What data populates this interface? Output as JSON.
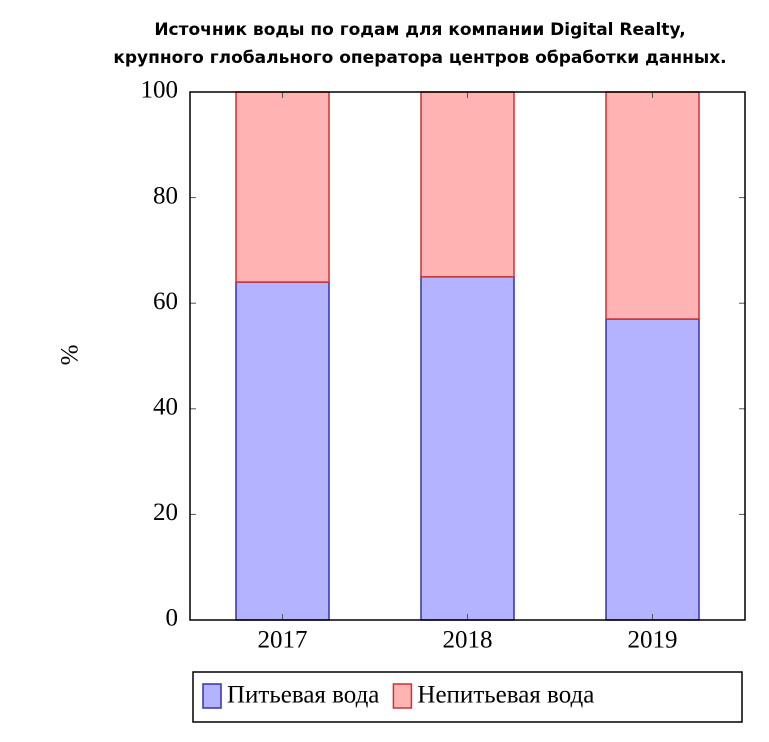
{
  "chart_data": {
    "type": "stacked_bar",
    "title": [
      "Источник воды по годам для компании Digital Realty,",
      "крупного глобального оператора центров обработки данных."
    ],
    "y_label": "%",
    "categories": [
      "2017",
      "2018",
      "2019"
    ],
    "series": [
      {
        "name": "Питьевая вода",
        "color": "#b3b3ff",
        "edge": "#3333aa",
        "values": [
          64,
          65,
          57
        ]
      },
      {
        "name": "Непитьевая вода",
        "color": "#ffb3b3",
        "edge": "#cc3333",
        "values": [
          36,
          35,
          43
        ]
      }
    ],
    "ylim": [
      0,
      100
    ],
    "yticks": [
      0,
      20,
      40,
      60,
      80,
      100
    ],
    "legend": "bottom"
  }
}
